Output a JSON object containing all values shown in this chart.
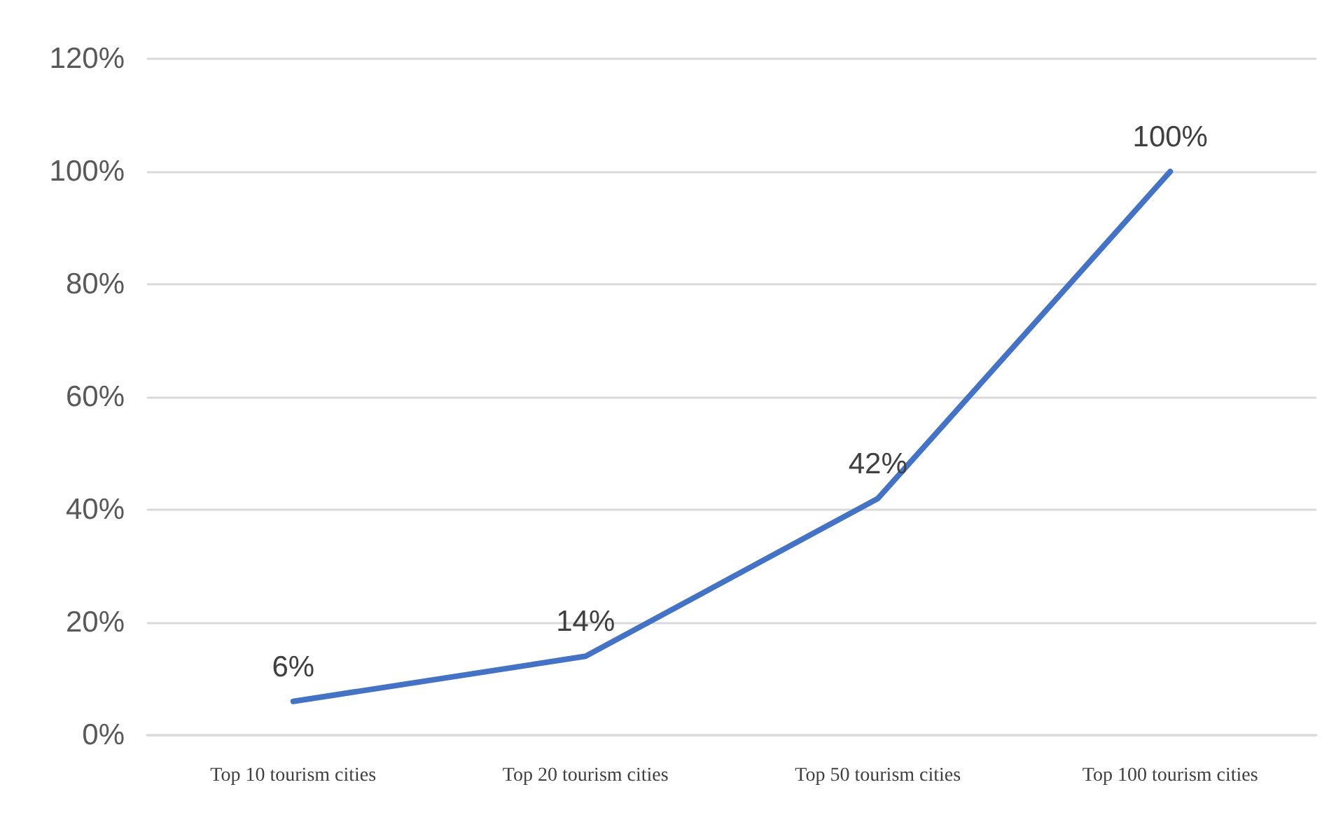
{
  "chart_data": {
    "type": "line",
    "categories": [
      "Top 10 tourism cities",
      "Top 20 tourism cities",
      "Top 50 tourism cities",
      "Top 100 tourism cities"
    ],
    "series": [
      {
        "color": "#4472c4",
        "values": [
          6,
          14,
          42,
          100
        ],
        "value_labels": [
          "6%",
          "14%",
          "42%",
          "100%"
        ]
      }
    ],
    "ylim": [
      0,
      120
    ],
    "yticks": [
      {
        "value": 0,
        "label": "0%"
      },
      {
        "value": 20,
        "label": "20%"
      },
      {
        "value": 40,
        "label": "40%"
      },
      {
        "value": 60,
        "label": "60%"
      },
      {
        "value": 80,
        "label": "80%"
      },
      {
        "value": 100,
        "label": "100%"
      },
      {
        "value": 120,
        "label": "120%"
      }
    ],
    "grid": "y",
    "marker": "none",
    "line_style": "solid"
  }
}
